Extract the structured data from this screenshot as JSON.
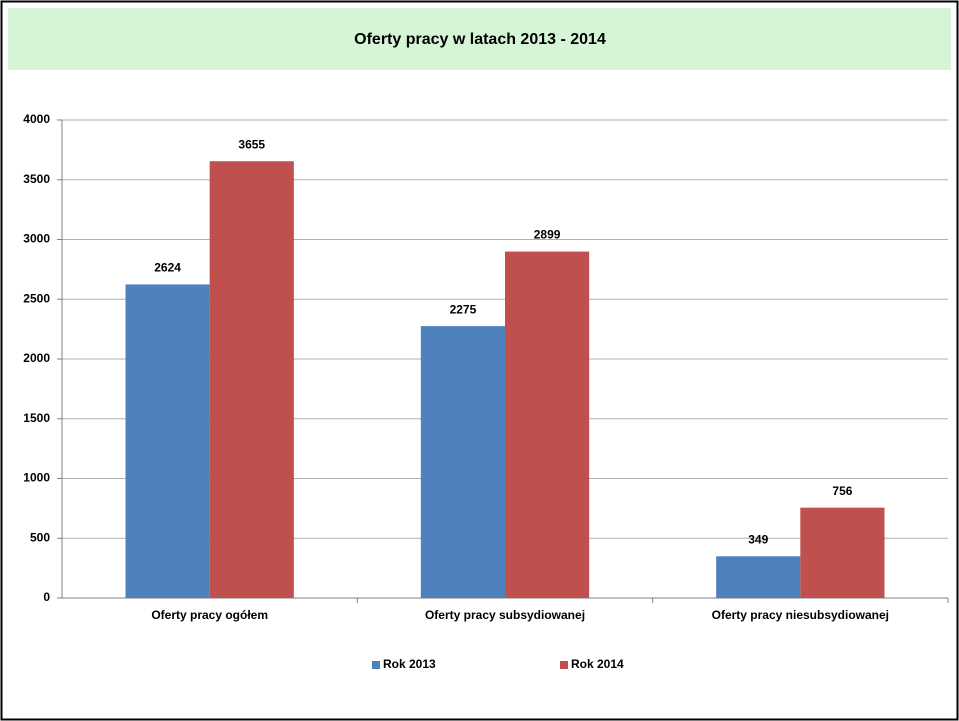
{
  "chart_data": {
    "type": "bar",
    "title": "Oferty pracy w latach 2013 - 2014",
    "categories": [
      "Oferty pracy ogółem",
      "Oferty pracy subsydiowanej",
      "Oferty pracy niesubsydiowanej"
    ],
    "series": [
      {
        "name": "Rok 2013",
        "color": "#4f81bd",
        "values": [
          2624,
          2275,
          349
        ]
      },
      {
        "name": "Rok 2014",
        "color": "#c0504d",
        "values": [
          3655,
          2899,
          756
        ]
      }
    ],
    "ylim": [
      0,
      4000
    ],
    "yticks": [
      0,
      500,
      1000,
      1500,
      2000,
      2500,
      3000,
      3500,
      4000
    ],
    "grid": true,
    "legend": "bottom"
  }
}
